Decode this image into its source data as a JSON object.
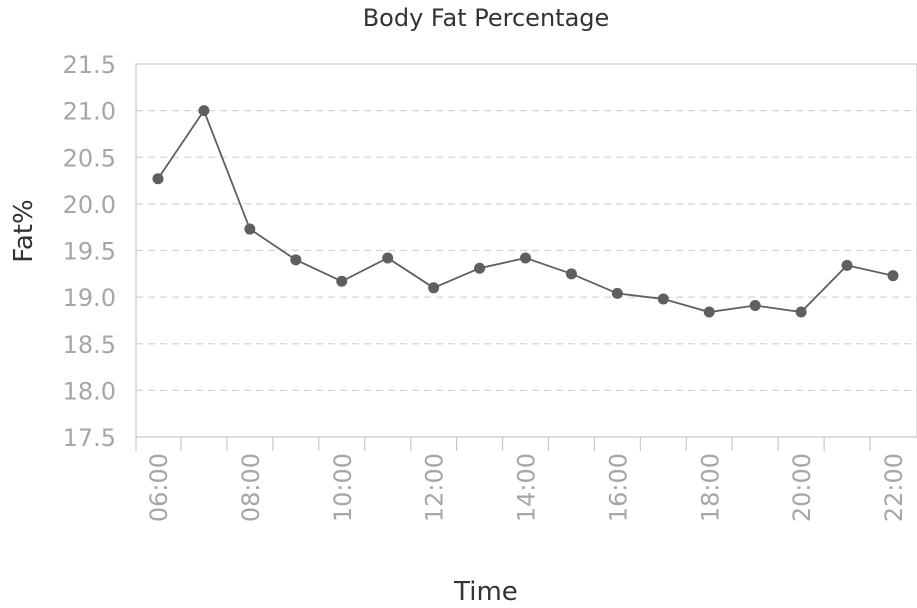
{
  "chart_data": {
    "type": "line",
    "title": "Body Fat Percentage",
    "xlabel": "Time",
    "ylabel": "Fat%",
    "ylim": [
      17.5,
      21.5
    ],
    "yticks": [
      "17.5",
      "18.0",
      "18.5",
      "19.0",
      "19.5",
      "20.0",
      "20.5",
      "21.0",
      "21.5"
    ],
    "x": [
      "06:00",
      "07:00",
      "08:00",
      "09:00",
      "10:00",
      "11:00",
      "12:00",
      "13:00",
      "14:00",
      "15:00",
      "16:00",
      "17:00",
      "18:00",
      "19:00",
      "20:00",
      "21:00",
      "22:00"
    ],
    "xtick_labels": [
      "06:00",
      "08:00",
      "10:00",
      "12:00",
      "14:00",
      "16:00",
      "18:00",
      "20:00",
      "22:00"
    ],
    "series": [
      {
        "values": [
          20.27,
          21.0,
          19.73,
          19.4,
          19.17,
          19.42,
          19.1,
          19.31,
          19.42,
          19.25,
          19.04,
          18.98,
          18.84,
          18.91,
          18.84,
          19.34,
          19.23
        ]
      }
    ],
    "grid": true,
    "color": "#5f5f5f"
  }
}
